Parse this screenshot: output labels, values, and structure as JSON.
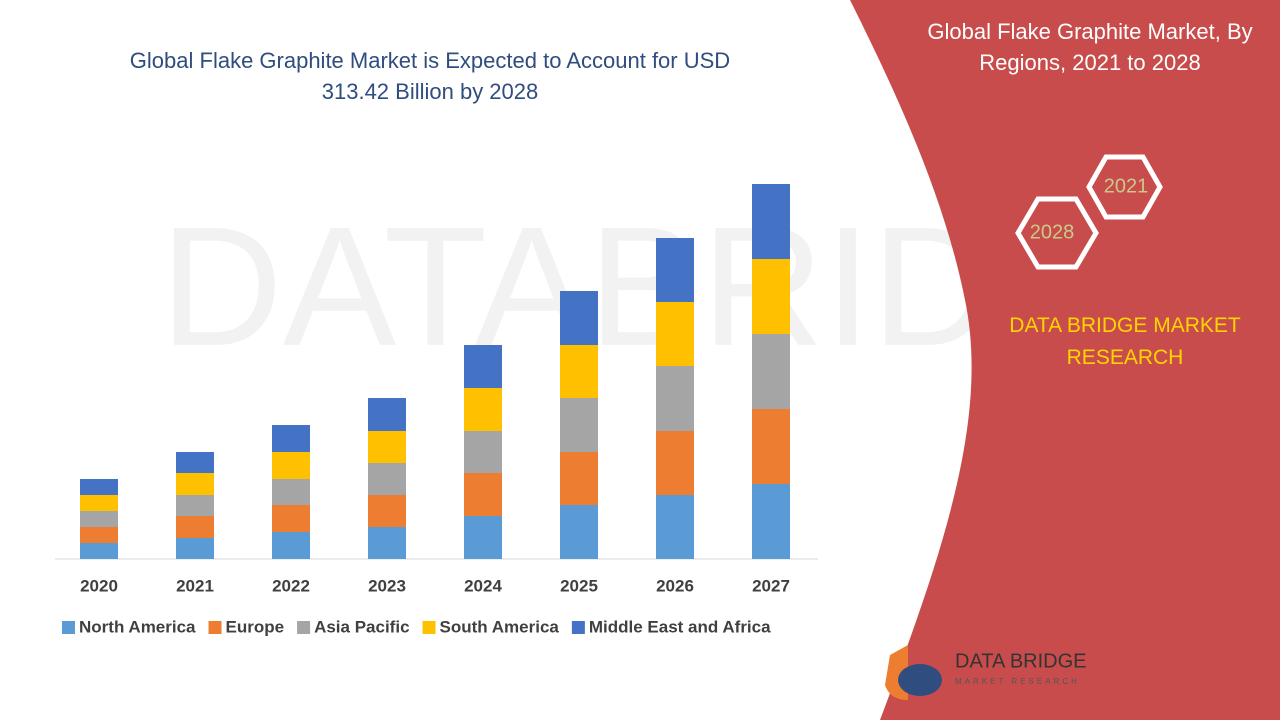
{
  "chart_data": {
    "type": "stacked-bar",
    "title": "Global Flake Graphite Market is Expected to Account for USD 313.42 Billion by 2028",
    "categories": [
      "2020",
      "2021",
      "2022",
      "2023",
      "2024",
      "2025",
      "2026",
      "2027"
    ],
    "series": [
      {
        "name": "North America",
        "color": "#5b9bd5",
        "values": [
          16,
          21,
          27,
          32,
          43,
          54,
          64,
          75
        ]
      },
      {
        "name": "Europe",
        "color": "#ed7d31",
        "values": [
          16,
          22,
          27,
          32,
          43,
          53,
          64,
          75
        ]
      },
      {
        "name": "Asia Pacific",
        "color": "#a5a5a5",
        "values": [
          16,
          21,
          26,
          32,
          42,
          54,
          65,
          75
        ]
      },
      {
        "name": "South America",
        "color": "#ffc000",
        "values": [
          16,
          22,
          27,
          32,
          43,
          53,
          64,
          75
        ]
      },
      {
        "name": "Middle East and Africa",
        "color": "#4472c4",
        "values": [
          16,
          21,
          27,
          33,
          43,
          54,
          64,
          75
        ]
      }
    ],
    "legend": "bottom"
  },
  "side_panel": {
    "title": "Global Flake Graphite Market, By Regions, 2021 to 2028",
    "hexagons": [
      "2021",
      "2028"
    ],
    "brand": "DATA BRIDGE MARKET RESEARCH",
    "logo": {
      "name": "DATA BRIDGE",
      "tagline": "MARKET RESEARCH"
    }
  }
}
